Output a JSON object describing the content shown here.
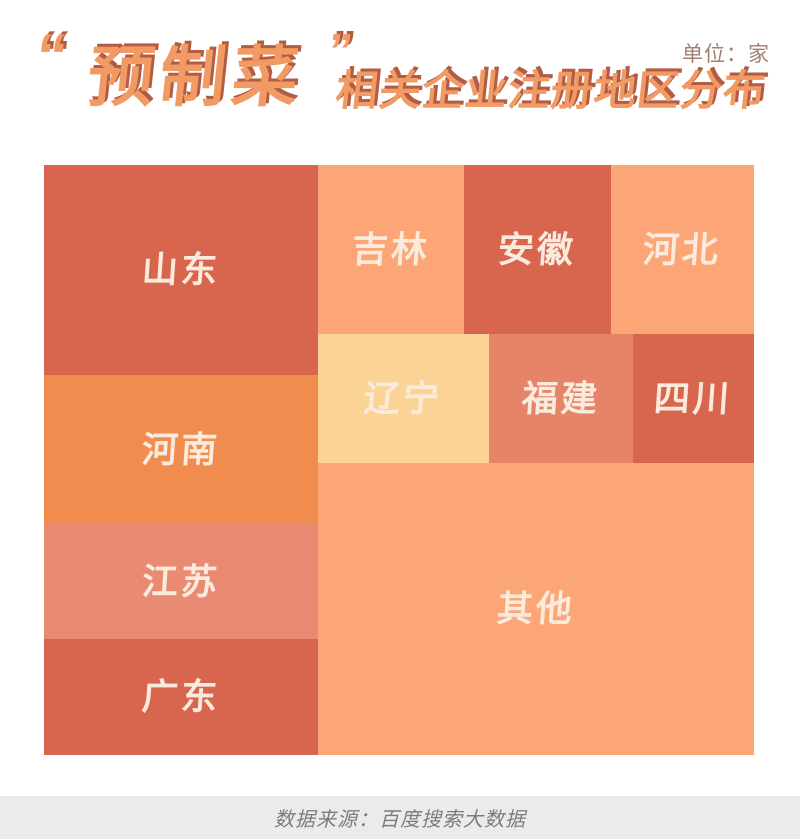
{
  "header": {
    "quote_open": "“",
    "title_highlight": "预制菜",
    "quote_close": "”",
    "title_rest": "相关企业注册地区分布",
    "unit_label": "单位：家"
  },
  "treemap": {
    "items": [
      {
        "id": "shandong",
        "label": "山东",
        "color": "#D8664F"
      },
      {
        "id": "henan",
        "label": "河南",
        "color": "#F08C4E"
      },
      {
        "id": "jiangsu",
        "label": "江苏",
        "color": "#E98B72"
      },
      {
        "id": "guangdong",
        "label": "广东",
        "color": "#D8664F"
      },
      {
        "id": "jilin",
        "label": "吉林",
        "color": "#FCA576"
      },
      {
        "id": "anhui",
        "label": "安徽",
        "color": "#D8664F"
      },
      {
        "id": "hebei",
        "label": "河北",
        "color": "#FCA576"
      },
      {
        "id": "liaoning",
        "label": "辽宁",
        "color": "#FBD394"
      },
      {
        "id": "fujian",
        "label": "福建",
        "color": "#E6846A"
      },
      {
        "id": "sichuan",
        "label": "四川",
        "color": "#D8664F"
      },
      {
        "id": "others",
        "label": "其他",
        "color": "#FCA576"
      }
    ]
  },
  "footer": {
    "source_label": "数据来源：百度搜索大数据"
  },
  "colors": {
    "page_bg": "#FFFFFF",
    "title_fill": "#F29A63",
    "title_shadow": "#B15C43",
    "unit_text": "#A47E70",
    "label_text": "#FAEBDD",
    "footer_bg": "#EBEBEB",
    "footer_text": "#7C7C7C"
  },
  "chart_data": {
    "type": "treemap",
    "title": "“预制菜”相关企业注册地区分布",
    "unit": "单位：家",
    "source": "数据来源：百度搜索大数据",
    "categories": [
      "山东",
      "河南",
      "江苏",
      "广东",
      "吉林",
      "安徽",
      "河北",
      "辽宁",
      "福建",
      "四川",
      "其他"
    ],
    "values_estimated_area_pct": [
      13.8,
      9.8,
      7.5,
      7.6,
      5.9,
      5.9,
      5.7,
      5.2,
      4.4,
      3.7,
      30.3
    ],
    "value_labels_shown": false,
    "legend": "none"
  }
}
